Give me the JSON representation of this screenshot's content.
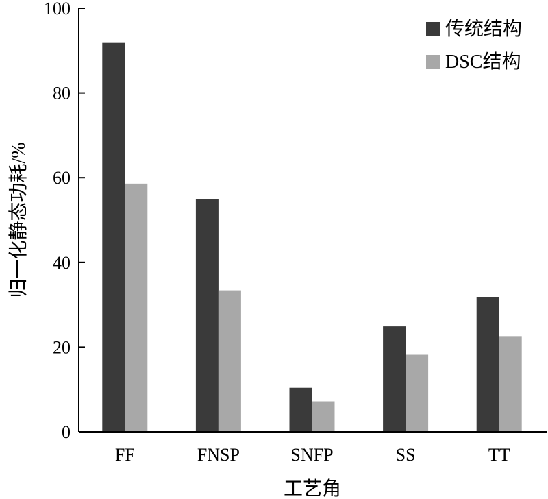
{
  "chart_data": {
    "type": "bar",
    "categories": [
      "FF",
      "FNSP",
      "SNFP",
      "SS",
      "TT"
    ],
    "series": [
      {
        "name": "传统结构",
        "values": [
          91.8,
          55.0,
          10.4,
          24.9,
          31.8
        ],
        "color": "#3a3a3a"
      },
      {
        "name": "DSC结构",
        "values": [
          58.6,
          33.4,
          7.2,
          18.2,
          22.6
        ],
        "color": "#a8a8a8"
      }
    ],
    "xlabel": "工艺角",
    "ylabel": "归一化静态功耗/%",
    "ylim": [
      0,
      100
    ],
    "yticks": [
      0,
      20,
      40,
      60,
      80,
      100
    ],
    "grid": false,
    "legend_position": "top-right"
  }
}
